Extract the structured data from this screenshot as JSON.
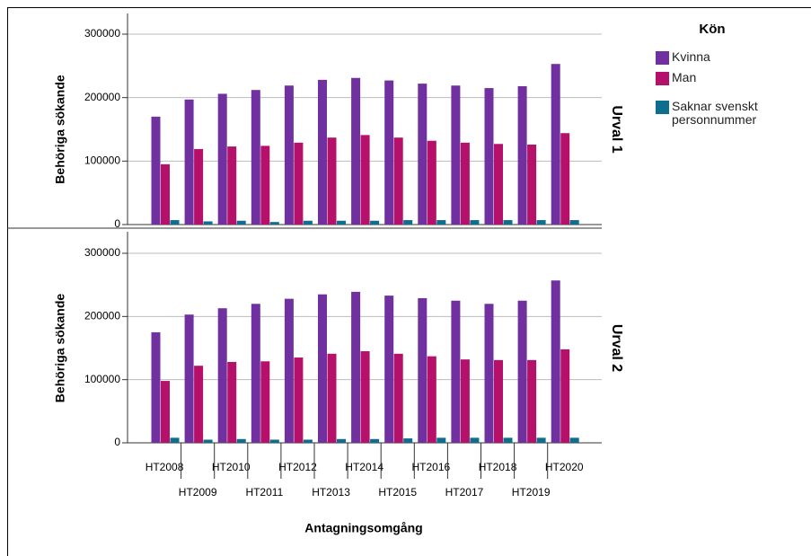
{
  "chart_data": {
    "type": "bar",
    "y_label": "Behöriga sökande",
    "x_label": "Antagningsomgång",
    "legend_title": "Kön",
    "categories": [
      "HT2008",
      "HT2009",
      "HT2010",
      "HT2011",
      "HT2012",
      "HT2013",
      "HT2014",
      "HT2015",
      "HT2016",
      "HT2017",
      "HT2018",
      "HT2019",
      "HT2020"
    ],
    "series": [
      {
        "name": "Kvinna",
        "color": "#7030a0"
      },
      {
        "name": "Man",
        "color": "#b5116a"
      },
      {
        "name": "Saknar svenskt personnummer",
        "color": "#0e6e8e"
      }
    ],
    "ylim": [
      0,
      300000
    ],
    "yticks": [
      0,
      100000,
      200000,
      300000
    ],
    "grid": true,
    "panels": [
      {
        "label": "Urval 1",
        "values": [
          [
            170000,
            197000,
            206000,
            212000,
            219000,
            228000,
            231000,
            227000,
            222000,
            219000,
            215000,
            218000,
            253000
          ],
          [
            95000,
            119000,
            123000,
            124000,
            129000,
            137000,
            141000,
            137000,
            132000,
            129000,
            127000,
            126000,
            144000
          ],
          [
            7000,
            5000,
            6000,
            4000,
            6000,
            6000,
            6000,
            7000,
            7000,
            7000,
            7000,
            7000,
            7000
          ]
        ]
      },
      {
        "label": "Urval 2",
        "values": [
          [
            175000,
            203000,
            213000,
            220000,
            228000,
            235000,
            239000,
            233000,
            229000,
            225000,
            220000,
            225000,
            257000
          ],
          [
            98000,
            122000,
            128000,
            129000,
            135000,
            141000,
            145000,
            141000,
            137000,
            132000,
            131000,
            131000,
            148000
          ],
          [
            8000,
            5000,
            6000,
            5000,
            5000,
            6000,
            6000,
            7000,
            8000,
            8000,
            8000,
            8000,
            8000
          ]
        ]
      }
    ]
  }
}
